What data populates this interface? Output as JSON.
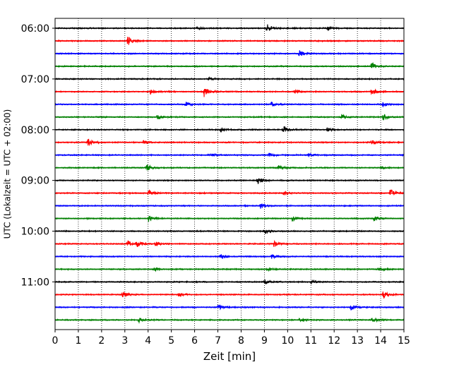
{
  "chart_data": {
    "type": "line",
    "title": "",
    "xlabel": "Zeit  [min]",
    "ylabel": "UTC (Lokalzeit = UTC + 02:00)",
    "xlim": [
      0,
      15
    ],
    "x_ticks": [
      0,
      1,
      2,
      3,
      4,
      5,
      6,
      7,
      8,
      9,
      10,
      11,
      12,
      13,
      14,
      15
    ],
    "x_grid": true,
    "y_grid": false,
    "line_interval_minutes": 15,
    "y_tick_labels": [
      "06:00",
      "07:00",
      "08:00",
      "09:00",
      "10:00",
      "11:00"
    ],
    "color_cycle": [
      "#000000",
      "#ff0000",
      "#0000ff",
      "#008000"
    ],
    "traces": [
      {
        "start": "06:00",
        "color": "#000000",
        "events": [
          {
            "t": 9.1,
            "amp": 0.9
          },
          {
            "t": 11.7,
            "amp": 0.35
          },
          {
            "t": 6.1,
            "amp": 0.25
          }
        ]
      },
      {
        "start": "06:15",
        "color": "#ff0000",
        "events": [
          {
            "t": 3.1,
            "amp": 0.9
          }
        ]
      },
      {
        "start": "06:30",
        "color": "#0000ff",
        "events": [
          {
            "t": 10.5,
            "amp": 0.6
          }
        ]
      },
      {
        "start": "06:45",
        "color": "#008000",
        "events": [
          {
            "t": 13.6,
            "amp": 0.8
          }
        ]
      },
      {
        "start": "07:00",
        "color": "#000000",
        "events": [
          {
            "t": 6.6,
            "amp": 0.3
          }
        ]
      },
      {
        "start": "07:15",
        "color": "#ff0000",
        "events": [
          {
            "t": 6.4,
            "amp": 1.0
          },
          {
            "t": 4.1,
            "amp": 0.45
          },
          {
            "t": 10.3,
            "amp": 0.4
          },
          {
            "t": 13.6,
            "amp": 0.75
          }
        ]
      },
      {
        "start": "07:30",
        "color": "#0000ff",
        "events": [
          {
            "t": 5.6,
            "amp": 0.45
          },
          {
            "t": 9.3,
            "amp": 0.5
          },
          {
            "t": 14.1,
            "amp": 0.35
          }
        ]
      },
      {
        "start": "07:45",
        "color": "#008000",
        "events": [
          {
            "t": 4.4,
            "amp": 0.6
          },
          {
            "t": 12.3,
            "amp": 0.5
          },
          {
            "t": 14.1,
            "amp": 0.55
          }
        ]
      },
      {
        "start": "08:00",
        "color": "#000000",
        "events": [
          {
            "t": 9.8,
            "amp": 0.75
          },
          {
            "t": 7.1,
            "amp": 0.3
          },
          {
            "t": 11.7,
            "amp": 0.35
          }
        ]
      },
      {
        "start": "08:15",
        "color": "#ff0000",
        "events": [
          {
            "t": 1.4,
            "amp": 0.7
          },
          {
            "t": 3.8,
            "amp": 0.35
          },
          {
            "t": 13.6,
            "amp": 0.55
          }
        ]
      },
      {
        "start": "08:30",
        "color": "#0000ff",
        "events": [
          {
            "t": 6.7,
            "amp": 0.35
          },
          {
            "t": 9.2,
            "amp": 0.45
          },
          {
            "t": 10.9,
            "amp": 0.3
          }
        ]
      },
      {
        "start": "08:45",
        "color": "#008000",
        "events": [
          {
            "t": 3.9,
            "amp": 0.75
          },
          {
            "t": 9.6,
            "amp": 0.4
          },
          {
            "t": 14.0,
            "amp": 0.3
          }
        ]
      },
      {
        "start": "09:00",
        "color": "#000000",
        "events": [
          {
            "t": 8.7,
            "amp": 0.7
          }
        ]
      },
      {
        "start": "09:15",
        "color": "#ff0000",
        "events": [
          {
            "t": 4.0,
            "amp": 0.5
          },
          {
            "t": 9.8,
            "amp": 0.35
          },
          {
            "t": 14.4,
            "amp": 0.8
          }
        ]
      },
      {
        "start": "09:30",
        "color": "#0000ff",
        "events": [
          {
            "t": 8.8,
            "amp": 0.6
          }
        ]
      },
      {
        "start": "09:45",
        "color": "#008000",
        "events": [
          {
            "t": 4.0,
            "amp": 0.6
          },
          {
            "t": 10.2,
            "amp": 0.45
          },
          {
            "t": 13.7,
            "amp": 0.5
          }
        ]
      },
      {
        "start": "10:00",
        "color": "#000000",
        "events": [
          {
            "t": 9.0,
            "amp": 0.45
          }
        ]
      },
      {
        "start": "10:15",
        "color": "#ff0000",
        "events": [
          {
            "t": 3.1,
            "amp": 0.65
          },
          {
            "t": 3.5,
            "amp": 0.55
          },
          {
            "t": 4.3,
            "amp": 0.45
          },
          {
            "t": 9.4,
            "amp": 0.5
          }
        ]
      },
      {
        "start": "10:30",
        "color": "#0000ff",
        "events": [
          {
            "t": 7.1,
            "amp": 0.5
          },
          {
            "t": 9.3,
            "amp": 0.4
          }
        ]
      },
      {
        "start": "10:45",
        "color": "#008000",
        "events": [
          {
            "t": 4.2,
            "amp": 0.45
          },
          {
            "t": 9.1,
            "amp": 0.4
          },
          {
            "t": 13.9,
            "amp": 0.45
          }
        ]
      },
      {
        "start": "11:00",
        "color": "#000000",
        "events": [
          {
            "t": 9.0,
            "amp": 0.45
          },
          {
            "t": 11.0,
            "amp": 0.3
          }
        ]
      },
      {
        "start": "11:15",
        "color": "#ff0000",
        "events": [
          {
            "t": 2.9,
            "amp": 0.85
          },
          {
            "t": 5.3,
            "amp": 0.45
          },
          {
            "t": 14.1,
            "amp": 0.75
          }
        ]
      },
      {
        "start": "11:30",
        "color": "#0000ff",
        "events": [
          {
            "t": 7.0,
            "amp": 0.6
          },
          {
            "t": 12.7,
            "amp": 0.55
          }
        ]
      },
      {
        "start": "11:45",
        "color": "#008000",
        "events": [
          {
            "t": 3.6,
            "amp": 0.4
          },
          {
            "t": 10.5,
            "amp": 0.35
          },
          {
            "t": 13.6,
            "amp": 0.55
          }
        ]
      }
    ]
  }
}
